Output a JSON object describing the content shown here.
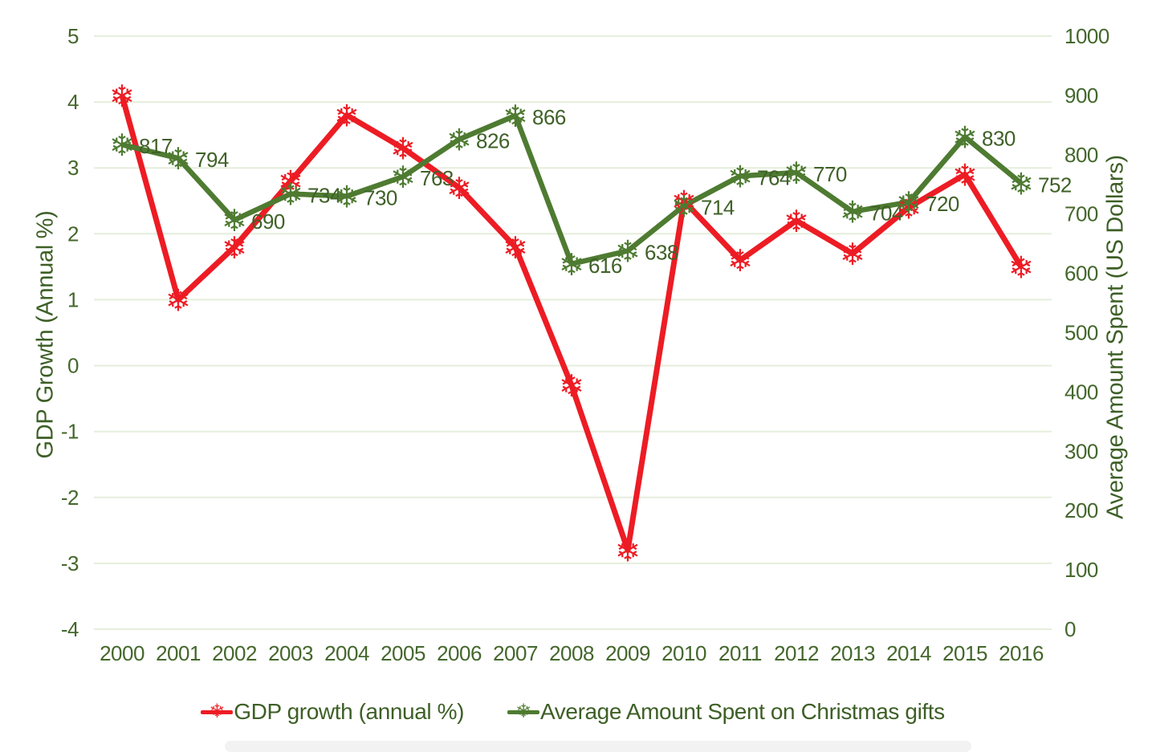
{
  "chart_data": {
    "type": "line",
    "title": "",
    "x": [
      2000,
      2001,
      2002,
      2003,
      2004,
      2005,
      2006,
      2007,
      2008,
      2009,
      2010,
      2011,
      2012,
      2013,
      2014,
      2015,
      2016
    ],
    "series": [
      {
        "name": "GDP growth (annual %)",
        "axis": "left",
        "color": "#ed1c24",
        "marker": "snowflake-icon",
        "values": [
          4.1,
          1.0,
          1.8,
          2.8,
          3.8,
          3.3,
          2.7,
          1.8,
          -0.3,
          -2.8,
          2.5,
          1.6,
          2.2,
          1.7,
          2.4,
          2.9,
          1.5
        ],
        "data_labels": false
      },
      {
        "name": "Average Amount Spent on Christmas gifts",
        "axis": "right",
        "color": "#4e7b31",
        "marker": "snowflake-icon",
        "values": [
          817,
          794,
          690,
          734,
          730,
          763,
          826,
          866,
          616,
          638,
          714,
          764,
          770,
          704,
          720,
          830,
          752
        ],
        "data_labels": true
      }
    ],
    "ylabel_left": "GDP Growth (Annual %)",
    "ylabel_right": "Average Amount Spent (US Dollars)",
    "left_axis": {
      "min": -4,
      "max": 5,
      "ticks": [
        5,
        4,
        3,
        2,
        1,
        0,
        -1,
        -2,
        -3,
        -4
      ]
    },
    "right_axis": {
      "min": 0,
      "max": 1000,
      "ticks": [
        1000,
        900,
        800,
        700,
        600,
        500,
        400,
        300,
        200,
        100,
        0
      ]
    },
    "grid": "horizontal",
    "legend_position": "bottom",
    "marker_glyph": "❄",
    "colors": {
      "gdp_red": "#ed1c24",
      "spending_green": "#4e7b31",
      "text_green": "#3d5f26",
      "tick_green": "#44672c",
      "gridline": "#e5eedb",
      "bottom_bar": "#f2f2f2"
    }
  }
}
